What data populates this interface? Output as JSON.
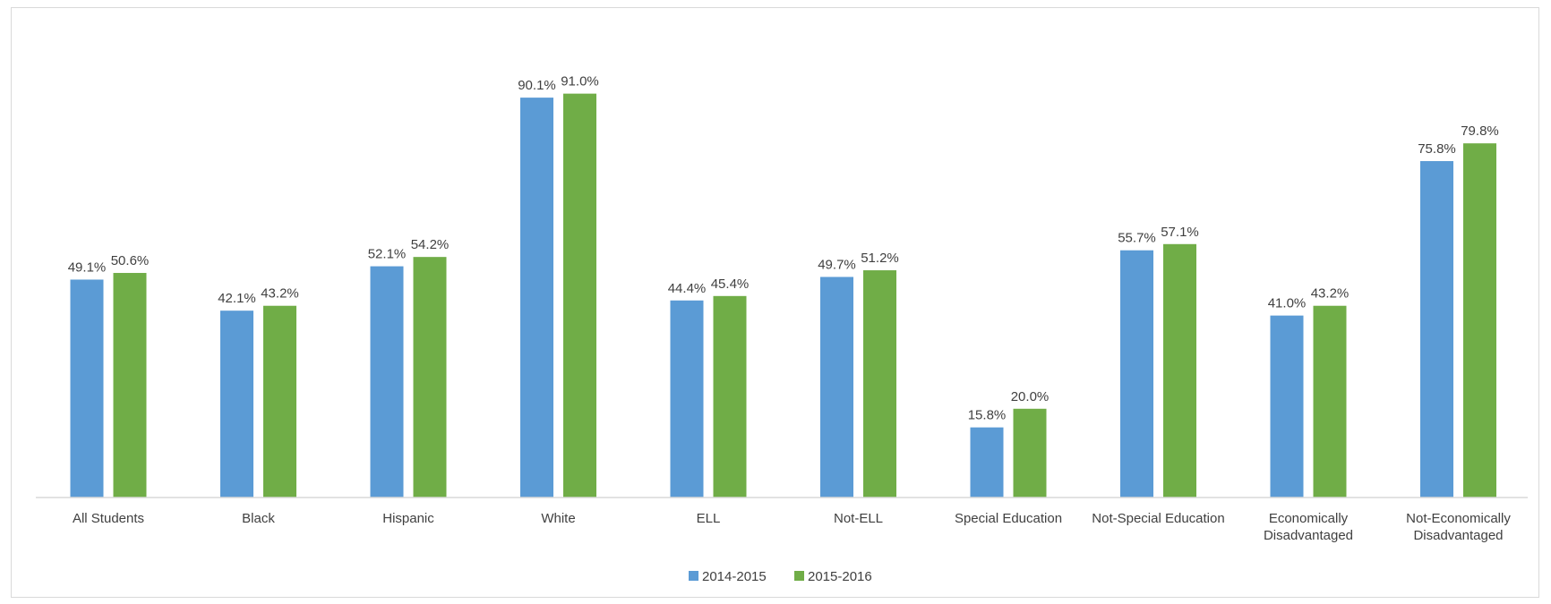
{
  "chart_data": {
    "type": "bar",
    "title": "",
    "xlabel": "",
    "ylabel": "",
    "ylim": [
      0,
      100
    ],
    "grid": false,
    "legend_position": "bottom",
    "categories": [
      "All Students",
      "Black",
      "Hispanic",
      "White",
      "ELL",
      "Not-ELL",
      "Special Education",
      "Not-Special Education",
      "Economically Disadvantaged",
      "Not-Economically Disadvantaged"
    ],
    "category_label_lines": [
      [
        "All Students"
      ],
      [
        "Black"
      ],
      [
        "Hispanic"
      ],
      [
        "White"
      ],
      [
        "ELL"
      ],
      [
        "Not-ELL"
      ],
      [
        "Special Education"
      ],
      [
        "Not-Special Education"
      ],
      [
        "Economically",
        "Disadvantaged"
      ],
      [
        "Not-Economically",
        "Disadvantaged"
      ]
    ],
    "series": [
      {
        "name": "2014-2015",
        "color": "#5b9bd5",
        "values": [
          49.1,
          42.1,
          52.1,
          90.1,
          44.4,
          49.7,
          15.8,
          55.7,
          41.0,
          75.8
        ],
        "labels": [
          "49.1%",
          "42.1%",
          "52.1%",
          "90.1%",
          "44.4%",
          "49.7%",
          "15.8%",
          "55.7%",
          "41.0%",
          "75.8%"
        ]
      },
      {
        "name": "2015-2016",
        "color": "#70ad47",
        "values": [
          50.6,
          43.2,
          54.2,
          91.0,
          45.4,
          51.2,
          20.0,
          57.1,
          43.2,
          79.8
        ],
        "labels": [
          "50.6%",
          "43.2%",
          "54.2%",
          "91.0%",
          "45.4%",
          "51.2%",
          "20.0%",
          "57.1%",
          "43.2%",
          "79.8%"
        ]
      }
    ]
  }
}
